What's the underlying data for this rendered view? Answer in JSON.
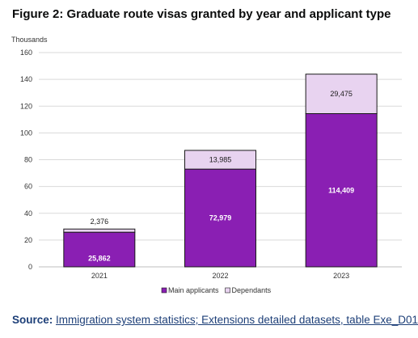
{
  "figure": {
    "title": "Figure 2: Graduate route visas granted by year and applicant type",
    "units_label": "Thousands"
  },
  "source": {
    "label": "Source:",
    "link_text": "Immigration system statistics; Extensions detailed datasets, table Exe_D01"
  },
  "colors": {
    "main_applicants": "#8a1fb3",
    "dependants": "#e8d3f0",
    "bar_outline": "#1a1a1a",
    "grid": "#d9d9d9",
    "axis_text": "#333333"
  },
  "chart_data": {
    "type": "bar",
    "stacked": true,
    "categories": [
      "2021",
      "2022",
      "2023"
    ],
    "series": [
      {
        "name": "Main applicants",
        "values": [
          25.862,
          72.979,
          114.409
        ],
        "labels": [
          "25,862",
          "72,979",
          "114,409"
        ]
      },
      {
        "name": "Dependants",
        "values": [
          2.376,
          13.985,
          29.475
        ],
        "labels": [
          "2,376",
          "13,985",
          "29,475"
        ]
      }
    ],
    "ylim": [
      0,
      160
    ],
    "yticks": [
      0,
      20,
      40,
      60,
      80,
      100,
      120,
      140,
      160
    ],
    "grid": true,
    "legend": "bottom",
    "ylabel": "Thousands"
  }
}
